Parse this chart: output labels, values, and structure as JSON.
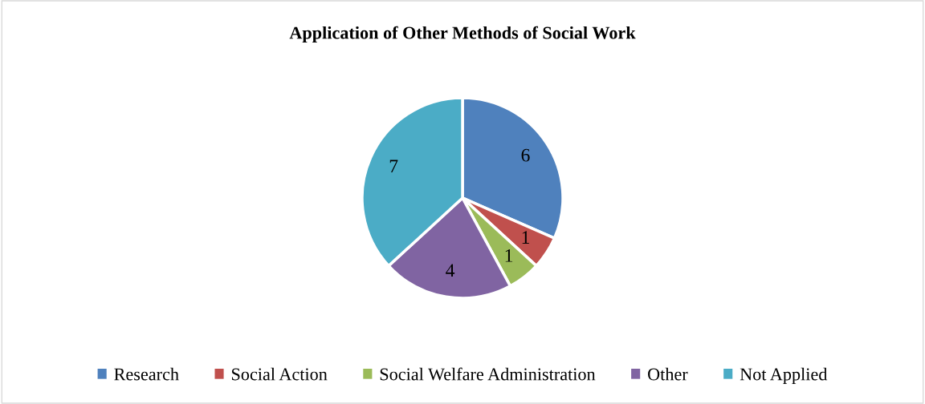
{
  "chart_data": {
    "type": "pie",
    "title": "Application of Other Methods of Social Work",
    "categories": [
      "Research",
      "Social Action",
      "Social Welfare Administration",
      "Other",
      "Not Applied"
    ],
    "values": [
      6,
      1,
      1,
      4,
      7
    ],
    "colors": [
      "#4f81bd",
      "#c0504d",
      "#9bbb59",
      "#8064a2",
      "#4bacc6"
    ],
    "data_labels": true,
    "legend": "bottom"
  }
}
